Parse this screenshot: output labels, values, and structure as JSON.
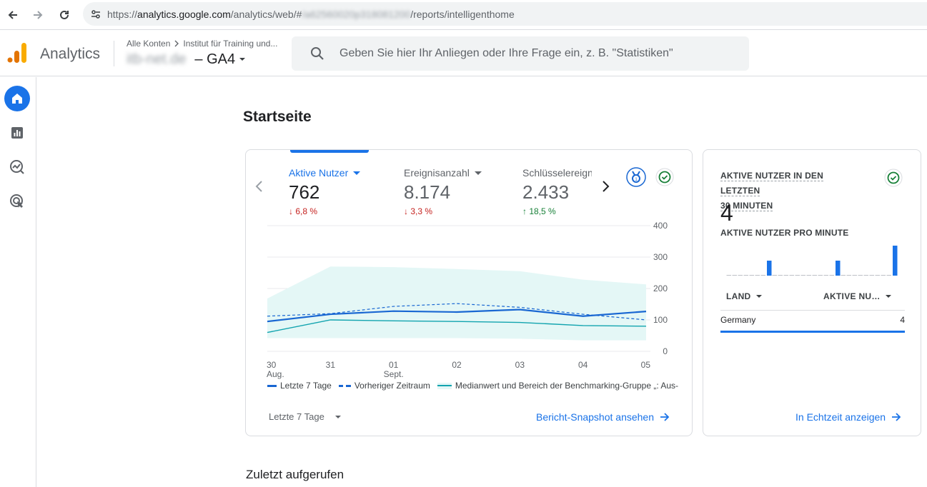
{
  "browser": {
    "url_prefix": "https://",
    "url_host": "analytics.google.com",
    "url_path1": "/analytics/web/#",
    "url_blurred": "/a62560020p318081200",
    "url_path2": "/reports/intelligenthome"
  },
  "header": {
    "app_name": "Analytics",
    "breadcrumb_account": "Alle Konten",
    "breadcrumb_property": "Institut für Training und...",
    "property_name": "itb-net.de",
    "property_suffix": "– GA4",
    "search_placeholder": "Geben Sie hier Ihr Anliegen oder Ihre Frage ein, z. B. \"Statistiken\""
  },
  "rail": {
    "items": [
      {
        "icon": "home-icon",
        "active": true
      },
      {
        "icon": "reports-icon",
        "active": false
      },
      {
        "icon": "explore-icon",
        "active": false
      },
      {
        "icon": "advertising-icon",
        "active": false
      }
    ]
  },
  "page": {
    "title": "Startseite",
    "recent_title": "Zuletzt aufgerufen"
  },
  "overview": {
    "metrics": [
      {
        "label": "Aktive Nutzer",
        "value": "762",
        "change": "6,8 %",
        "direction": "down"
      },
      {
        "label": "Ereignisanzahl",
        "value": "8.174",
        "change": "3,3 %",
        "direction": "down"
      },
      {
        "label": "Schlüsselereign",
        "value": "2.433",
        "change": "18,5 %",
        "direction": "up"
      }
    ],
    "legend": {
      "current": "Letzte 7 Tage",
      "previous": "Vorheriger Zeitraum",
      "benchmark": "Medianwert und Bereich der Benchmarking-Gruppe „: Aus-"
    },
    "date_range": "Letzte 7 Tage",
    "cta": "Bericht-Snapshot ansehen"
  },
  "chart_data": {
    "type": "line",
    "x_top": [
      "30",
      "31",
      "01",
      "02",
      "03",
      "04",
      "05"
    ],
    "x_bottom": [
      "Aug.",
      "",
      "Sept.",
      "",
      "",
      "",
      ""
    ],
    "y_ticks": [
      "0",
      "100",
      "200",
      "300",
      "400"
    ],
    "ylim": [
      0,
      400
    ],
    "y_axis_side": "right",
    "grid": true,
    "series": [
      {
        "name": "Letzte 7 Tage",
        "style": "solid",
        "values": [
          95,
          118,
          128,
          125,
          133,
          112,
          127
        ]
      },
      {
        "name": "Vorheriger Zeitraum",
        "style": "dashed",
        "values": [
          112,
          120,
          143,
          152,
          140,
          118,
          100
        ]
      },
      {
        "name": "Medianwert und Bereich der Benchmarking-Gruppe „: Aus-",
        "style": "solid",
        "values": [
          60,
          100,
          97,
          95,
          92,
          82,
          80
        ]
      }
    ],
    "band": {
      "upper": [
        168,
        270,
        268,
        262,
        255,
        228,
        213
      ],
      "lower": [
        42,
        42,
        42,
        42,
        40,
        35,
        35
      ]
    },
    "colors": {
      "current": "#1967d2",
      "previous": "#1967d2",
      "median": "#12a4af",
      "band": "#e4f7f6"
    }
  },
  "realtime": {
    "title_line1": "AKTIVE NUTZER IN DEN LETZTEN",
    "title_line2": "30 MINUTEN",
    "value": "4",
    "per_minute_label": "AKTIVE NUTZER PRO MINUTE",
    "minute_bars": [
      0,
      0,
      0,
      0,
      0,
      0,
      0,
      1,
      0,
      0,
      0,
      0,
      0,
      0,
      0,
      0,
      0,
      0,
      0,
      1,
      0,
      0,
      0,
      0,
      0,
      0,
      0,
      0,
      0,
      2
    ],
    "col_country": "LAND",
    "col_users": "AKTIVE NU…",
    "rows": [
      {
        "country": "Germany",
        "users": "4"
      }
    ],
    "cta": "In Echtzeit anzeigen"
  }
}
